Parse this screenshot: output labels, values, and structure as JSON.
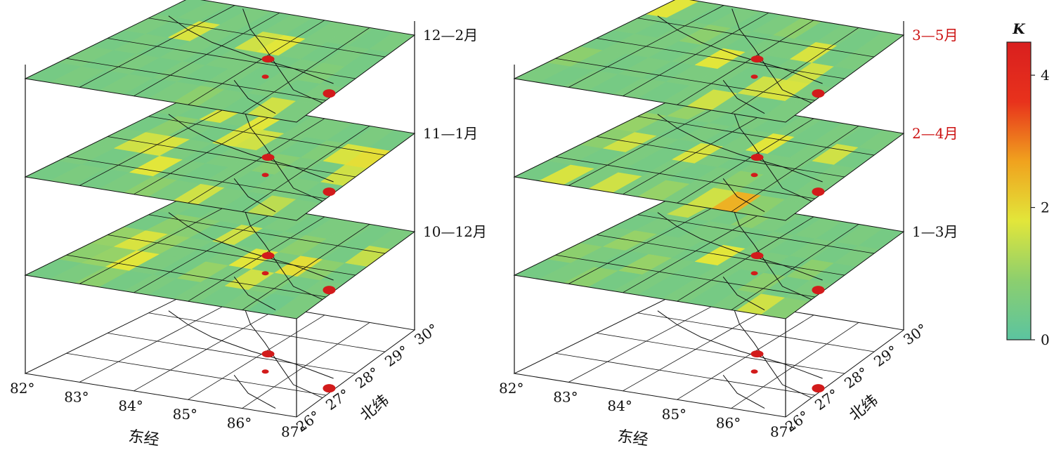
{
  "chart_data": {
    "type": "heatmap",
    "colorbar": {
      "title": "K",
      "min": 0,
      "max": 4.5,
      "ticks": [
        0,
        2,
        4
      ],
      "stops": [
        "#5bc4a0",
        "#8ccf6e",
        "#e2e63a",
        "#f0a21e",
        "#e8321c",
        "#d91f1f"
      ]
    },
    "axes": {
      "x": {
        "name": "东经",
        "ticks": [
          "82°",
          "83°",
          "84°",
          "85°",
          "86°",
          "87°"
        ]
      },
      "y": {
        "name": "北纬",
        "ticks": [
          "26°",
          "27°",
          "28°",
          "29°",
          "30°"
        ]
      }
    },
    "panels": [
      {
        "layers": [
          {
            "label": "10—12月",
            "label_color": "#111111",
            "cells": [
              [
                0.5,
                0.6,
                0.9,
                0.5,
                0.6,
                0.5,
                0.6,
                0.5,
                0.6,
                0.4,
                0.6
              ],
              [
                0.9,
                1.0,
                1.8,
                0.6,
                0.5,
                1.0,
                0.6,
                1.6,
                0.7,
                0.5,
                0.6
              ],
              [
                1.0,
                1.7,
                1.0,
                0.6,
                0.5,
                0.6,
                1.8,
                0.6,
                1.9,
                0.9,
                0.5
              ],
              [
                0.5,
                0.9,
                0.8,
                0.5,
                1.6,
                0.5,
                0.6,
                0.9,
                0.6,
                0.5,
                1.5
              ],
              [
                0.6,
                0.5,
                0.6,
                0.6,
                0.5,
                0.6,
                0.5,
                0.6,
                0.6,
                0.5,
                0.6
              ]
            ]
          },
          {
            "label": "11—1月",
            "label_color": "#111111",
            "cells": [
              [
                0.5,
                0.6,
                0.5,
                0.6,
                0.9,
                0.6,
                1.6,
                0.6,
                0.5,
                1.4,
                0.6
              ],
              [
                0.6,
                0.5,
                0.6,
                1.8,
                0.6,
                0.5,
                0.6,
                0.5,
                0.6,
                0.6,
                0.5
              ],
              [
                0.6,
                1.6,
                1.7,
                0.6,
                0.5,
                0.6,
                0.6,
                0.8,
                0.6,
                0.5,
                1.6
              ],
              [
                0.5,
                0.9,
                0.6,
                0.5,
                1.7,
                1.6,
                0.6,
                0.5,
                0.7,
                1.7,
                1.9
              ],
              [
                0.6,
                0.5,
                1.7,
                0.6,
                1.8,
                0.5,
                0.6,
                0.6,
                0.5,
                0.6,
                0.5
              ]
            ]
          },
          {
            "label": "12—2月",
            "label_color": "#111111",
            "cells": [
              [
                0.5,
                0.6,
                0.5,
                0.6,
                0.5,
                0.6,
                0.9,
                0.6,
                0.5,
                1.6,
                0.6
              ],
              [
                0.6,
                0.5,
                0.6,
                0.5,
                0.6,
                0.5,
                0.6,
                0.5,
                0.6,
                0.5,
                0.6
              ],
              [
                0.5,
                0.6,
                0.5,
                0.6,
                0.5,
                0.6,
                0.6,
                0.5,
                0.6,
                0.7,
                0.5
              ],
              [
                0.6,
                0.5,
                1.7,
                0.6,
                0.5,
                1.6,
                1.8,
                0.6,
                0.5,
                0.6,
                0.5
              ],
              [
                0.5,
                0.6,
                0.5,
                0.6,
                0.5,
                0.6,
                0.5,
                0.6,
                0.6,
                0.5,
                0.6
              ]
            ]
          }
        ]
      },
      {
        "layers": [
          {
            "label": "1—3月",
            "label_color": "#111111",
            "cells": [
              [
                0.5,
                0.6,
                0.9,
                0.5,
                0.6,
                0.5,
                0.6,
                0.5,
                0.6,
                1.6,
                0.8
              ],
              [
                0.9,
                0.6,
                0.5,
                1.0,
                0.6,
                0.5,
                0.6,
                0.5,
                0.9,
                0.5,
                0.6
              ],
              [
                0.6,
                1.0,
                0.6,
                0.6,
                0.5,
                1.8,
                0.6,
                0.6,
                0.5,
                0.9,
                0.5
              ],
              [
                0.5,
                0.6,
                0.5,
                0.6,
                0.6,
                0.5,
                0.6,
                0.5,
                0.6,
                0.5,
                0.6
              ],
              [
                0.6,
                1.5,
                0.6,
                0.5,
                0.9,
                0.6,
                0.5,
                0.6,
                0.5,
                0.6,
                0.5
              ]
            ]
          },
          {
            "label": "2—4月",
            "label_color": "#cc1111",
            "cells": [
              [
                0.5,
                1.7,
                0.6,
                1.6,
                0.6,
                1.0,
                0.6,
                1.6,
                2.5,
                0.9,
                0.6
              ],
              [
                0.6,
                0.5,
                0.6,
                0.5,
                0.6,
                0.5,
                0.6,
                0.9,
                0.6,
                0.5,
                0.6
              ],
              [
                0.9,
                1.6,
                0.6,
                0.5,
                1.7,
                0.6,
                0.5,
                0.6,
                0.6,
                0.5,
                0.6
              ],
              [
                1.0,
                0.6,
                0.5,
                0.6,
                0.5,
                0.6,
                1.8,
                0.5,
                0.6,
                1.6,
                0.5
              ],
              [
                0.6,
                1.0,
                0.6,
                0.5,
                0.6,
                0.5,
                0.6,
                0.5,
                0.6,
                0.5,
                0.6
              ]
            ]
          },
          {
            "label": "3—5月",
            "label_color": "#cc1111",
            "cells": [
              [
                0.6,
                0.5,
                0.6,
                0.5,
                0.6,
                0.5,
                0.6,
                1.6,
                0.6,
                0.5,
                0.6
              ],
              [
                0.9,
                0.6,
                0.5,
                0.6,
                0.5,
                0.6,
                0.6,
                0.5,
                1.6,
                1.7,
                0.6
              ],
              [
                0.5,
                0.6,
                0.6,
                0.5,
                0.6,
                1.8,
                0.6,
                0.5,
                0.6,
                1.6,
                0.5
              ],
              [
                0.6,
                0.5,
                0.6,
                0.9,
                0.6,
                0.5,
                0.6,
                0.6,
                1.7,
                0.5,
                0.6
              ],
              [
                1.8,
                0.6,
                0.5,
                0.6,
                0.5,
                0.6,
                0.9,
                0.5,
                0.6,
                0.5,
                0.6
              ]
            ]
          }
        ]
      }
    ]
  }
}
